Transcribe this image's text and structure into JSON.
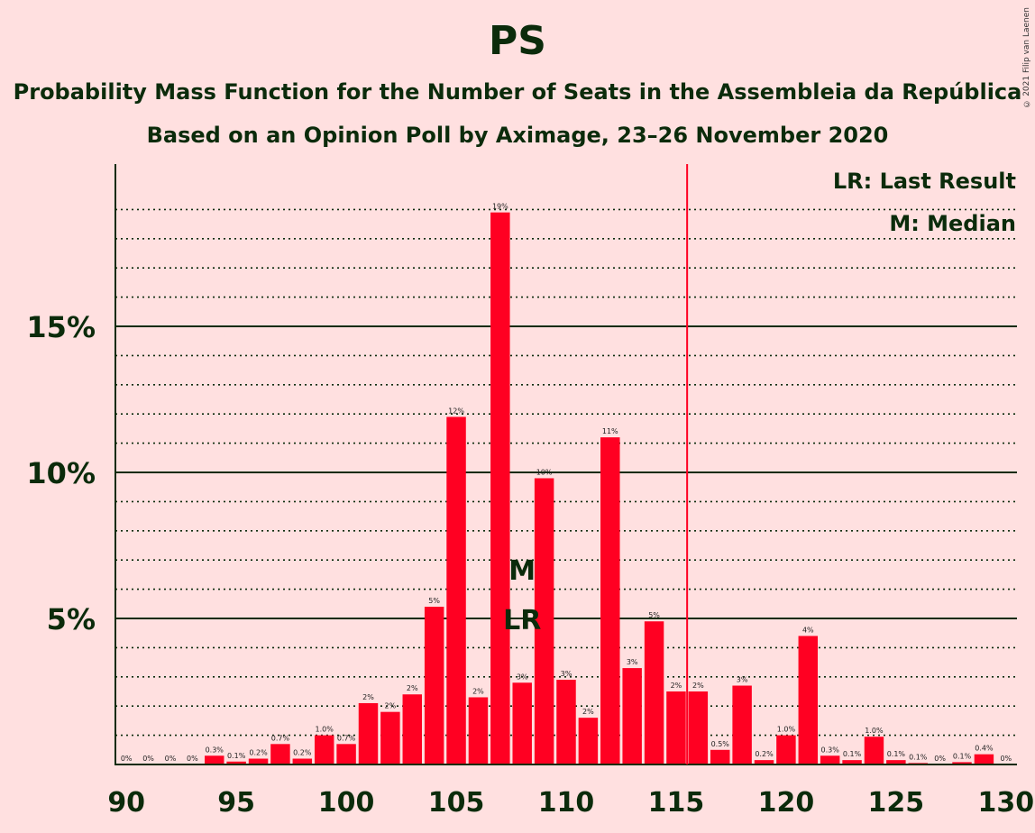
{
  "header": {
    "title": "PS",
    "subtitle1": "Probability Mass Function for the Number of Seats in the Assembleia da República",
    "subtitle2": "Based on an Opinion Poll by Aximage, 23–26 November 2020",
    "copyright": "© 2021 Filip van Laenen"
  },
  "chart_data": {
    "type": "bar",
    "title": "PS",
    "x": [
      90,
      91,
      92,
      93,
      94,
      95,
      96,
      97,
      98,
      99,
      100,
      101,
      102,
      103,
      104,
      105,
      106,
      107,
      108,
      109,
      110,
      111,
      112,
      113,
      114,
      115,
      116,
      117,
      118,
      119,
      120,
      121,
      122,
      123,
      124,
      125,
      126,
      127,
      128,
      129,
      130
    ],
    "values": [
      0,
      0,
      0,
      0,
      0.3,
      0.1,
      0.2,
      0.7,
      0.2,
      1.0,
      0.7,
      2.1,
      1.8,
      2.4,
      5.4,
      11.9,
      2.3,
      18.9,
      2.8,
      9.8,
      2.9,
      1.6,
      11.2,
      3.3,
      4.9,
      2.5,
      2.5,
      0.5,
      2.7,
      0.15,
      1.0,
      4.4,
      0.3,
      0.15,
      0.95,
      0.15,
      0.05,
      0,
      0.08,
      0.35,
      0
    ],
    "labels": [
      "0%",
      "0%",
      "0%",
      "0%",
      "0.3%",
      "0.1%",
      "0.2%",
      "0.7%",
      "0.2%",
      "1.0%",
      "0.7%",
      "2%",
      "2%",
      "2%",
      "5%",
      "12%",
      "2%",
      "19%",
      "3%",
      "10%",
      "3%",
      "2%",
      "11%",
      "3%",
      "5%",
      "2%",
      "2%",
      "0.5%",
      "3%",
      "0.2%",
      "1.0%",
      "4%",
      "0.3%",
      "0.1%",
      "1.0%",
      "0.1%",
      "0.1%",
      "0%",
      "0.1%",
      "0.4%",
      "0%"
    ],
    "xlim": [
      90,
      130
    ],
    "ylim": [
      0,
      19.5
    ],
    "x_ticks": [
      "90",
      "95",
      "100",
      "105",
      "110",
      "115",
      "120",
      "125",
      "130"
    ],
    "y_ticks": [
      {
        "v": 5,
        "label": "5%"
      },
      {
        "v": 10,
        "label": "10%"
      },
      {
        "v": 15,
        "label": "15%"
      }
    ],
    "last_result": 116,
    "median": 108,
    "markers": {
      "median": "M",
      "last_result": "LR"
    },
    "legend": [
      "LR: Last Result",
      "M: Median"
    ],
    "colors": {
      "bar": "#ff0022",
      "lr_line": "#ff0022",
      "axis": "#0b2b0b",
      "background": "#ffe0e0"
    }
  }
}
